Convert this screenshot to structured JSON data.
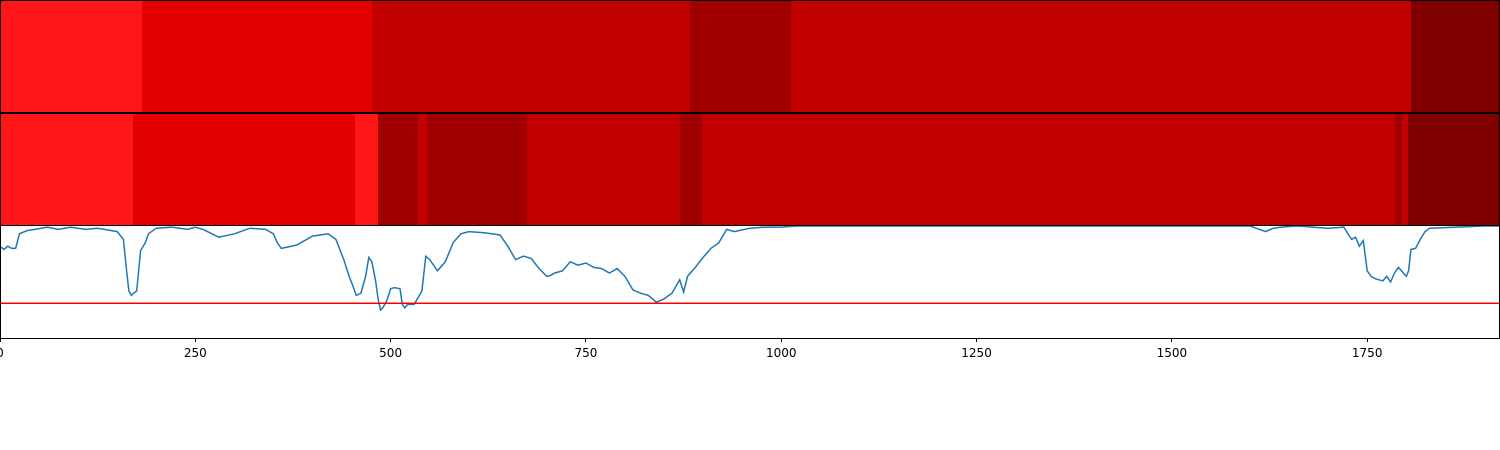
{
  "chart_data": [
    {
      "type": "heatmap",
      "panel": "top",
      "xlim": [
        0,
        1920
      ],
      "segments": [
        {
          "start": 0,
          "end": 182,
          "color": "#ff1616"
        },
        {
          "start": 182,
          "end": 476,
          "color": "#e40000"
        },
        {
          "start": 476,
          "end": 883,
          "color": "#c20000"
        },
        {
          "start": 883,
          "end": 1012,
          "color": "#a00000"
        },
        {
          "start": 1012,
          "end": 1806,
          "color": "#c20000"
        },
        {
          "start": 1806,
          "end": 1920,
          "color": "#800000"
        }
      ]
    },
    {
      "type": "heatmap",
      "panel": "middle",
      "xlim": [
        0,
        1920
      ],
      "segments": [
        {
          "start": 0,
          "end": 170,
          "color": "#ff1616"
        },
        {
          "start": 170,
          "end": 454,
          "color": "#e40000"
        },
        {
          "start": 454,
          "end": 484,
          "color": "#ff1616"
        },
        {
          "start": 484,
          "end": 517,
          "color": "#a00000"
        },
        {
          "start": 517,
          "end": 535,
          "color": "#a00000"
        },
        {
          "start": 535,
          "end": 547,
          "color": "#c20000"
        },
        {
          "start": 547,
          "end": 675,
          "color": "#a00000"
        },
        {
          "start": 675,
          "end": 870,
          "color": "#c20000"
        },
        {
          "start": 870,
          "end": 898,
          "color": "#a00000"
        },
        {
          "start": 898,
          "end": 1786,
          "color": "#c20000"
        },
        {
          "start": 1786,
          "end": 1795,
          "color": "#a00000"
        },
        {
          "start": 1795,
          "end": 1802,
          "color": "#c20000"
        },
        {
          "start": 1802,
          "end": 1920,
          "color": "#800000"
        }
      ]
    },
    {
      "type": "line",
      "panel": "bottom",
      "xlim": [
        0,
        1920
      ],
      "ylim": [
        0,
        1
      ],
      "threshold": 0.31,
      "threshold_color": "#ff0000",
      "line_color": "#1f77b4",
      "x": [
        0,
        5,
        10,
        15,
        20,
        25,
        35,
        45,
        60,
        75,
        90,
        110,
        125,
        150,
        158,
        162,
        165,
        168,
        171,
        175,
        180,
        186,
        190,
        200,
        220,
        240,
        250,
        260,
        280,
        300,
        320,
        340,
        350,
        355,
        360,
        380,
        400,
        420,
        430,
        440,
        447,
        452,
        456,
        462,
        468,
        472,
        476,
        481,
        484,
        487,
        490,
        495,
        500,
        505,
        512,
        515,
        518,
        522,
        530,
        540,
        545,
        550,
        560,
        570,
        580,
        590,
        600,
        620,
        640,
        650,
        660,
        670,
        680,
        690,
        700,
        705,
        710,
        720,
        730,
        740,
        750,
        760,
        770,
        780,
        790,
        800,
        810,
        820,
        830,
        840,
        850,
        860,
        870,
        875,
        880,
        890,
        900,
        910,
        920,
        930,
        940,
        960,
        980,
        1000,
        1020,
        1050,
        1100,
        1200,
        1300,
        1400,
        1500,
        1550,
        1600,
        1620,
        1630,
        1640,
        1660,
        1700,
        1720,
        1730,
        1735,
        1740,
        1745,
        1750,
        1755,
        1760,
        1765,
        1770,
        1775,
        1780,
        1785,
        1790,
        1800,
        1803,
        1806,
        1812,
        1818,
        1824,
        1830,
        1900,
        1920
      ],
      "y": [
        0.82,
        0.79,
        0.82,
        0.8,
        0.8,
        0.93,
        0.96,
        0.97,
        0.99,
        0.97,
        0.99,
        0.97,
        0.98,
        0.95,
        0.88,
        0.6,
        0.42,
        0.38,
        0.4,
        0.42,
        0.78,
        0.85,
        0.93,
        0.98,
        0.99,
        0.97,
        0.99,
        0.97,
        0.9,
        0.93,
        0.98,
        0.97,
        0.93,
        0.85,
        0.8,
        0.83,
        0.91,
        0.93,
        0.88,
        0.7,
        0.55,
        0.46,
        0.38,
        0.4,
        0.55,
        0.72,
        0.68,
        0.5,
        0.35,
        0.25,
        0.27,
        0.33,
        0.44,
        0.45,
        0.44,
        0.3,
        0.27,
        0.3,
        0.3,
        0.42,
        0.73,
        0.7,
        0.6,
        0.68,
        0.85,
        0.93,
        0.95,
        0.94,
        0.92,
        0.82,
        0.7,
        0.73,
        0.71,
        0.62,
        0.55,
        0.56,
        0.58,
        0.6,
        0.68,
        0.65,
        0.67,
        0.63,
        0.62,
        0.58,
        0.62,
        0.55,
        0.43,
        0.4,
        0.38,
        0.32,
        0.35,
        0.4,
        0.52,
        0.41,
        0.55,
        0.63,
        0.72,
        0.8,
        0.85,
        0.97,
        0.95,
        0.98,
        0.99,
        0.99,
        1.0,
        1.0,
        1.0,
        1.0,
        1.0,
        1.0,
        1.0,
        1.0,
        1.0,
        0.95,
        0.98,
        0.99,
        1.0,
        0.98,
        0.99,
        0.88,
        0.9,
        0.82,
        0.87,
        0.6,
        0.55,
        0.53,
        0.52,
        0.51,
        0.55,
        0.5,
        0.58,
        0.63,
        0.55,
        0.6,
        0.79,
        0.8,
        0.88,
        0.95,
        0.98,
        1.0,
        1.0
      ]
    }
  ],
  "x_axis": {
    "ticks": [
      0,
      250,
      500,
      750,
      1000,
      1250,
      1500,
      1750
    ],
    "labels": [
      "0",
      "250",
      "500",
      "750",
      "1000",
      "1250",
      "1500",
      "1750"
    ]
  }
}
